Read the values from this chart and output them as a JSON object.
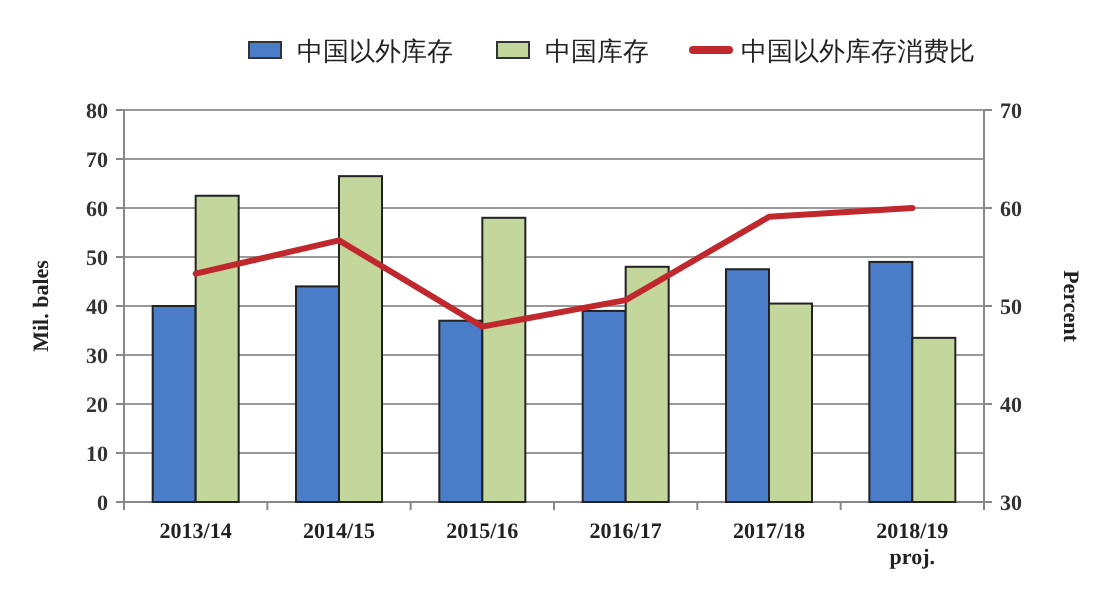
{
  "chart_data": {
    "type": "bar",
    "categories": [
      "2013/14",
      "2014/15",
      "2015/16",
      "2016/17",
      "2017/18",
      "2018/19\nproj."
    ],
    "series": [
      {
        "name": "中国以外库存",
        "color": "#4a7cc7",
        "values": [
          40,
          44,
          37,
          39,
          47.5,
          49
        ]
      },
      {
        "name": "中国库存",
        "color": "#c3d69b",
        "values": [
          62.5,
          66.5,
          58,
          48,
          40.5,
          33.5
        ]
      },
      {
        "name": "中国以外库存消费比",
        "type": "line",
        "axis": "y2",
        "color": "#c0282d",
        "values": [
          53.3,
          56.7,
          47.9,
          50.6,
          59.1,
          60
        ]
      }
    ],
    "ylabel": "Mil. bales",
    "y2label": "Percent",
    "ylim": [
      0,
      80
    ],
    "yticks": [
      0,
      10,
      20,
      30,
      40,
      50,
      60,
      70,
      80
    ],
    "y2lim": [
      30,
      70
    ],
    "y2ticks": [
      30,
      40,
      50,
      60,
      70
    ],
    "grid": "y",
    "legend": "top"
  }
}
